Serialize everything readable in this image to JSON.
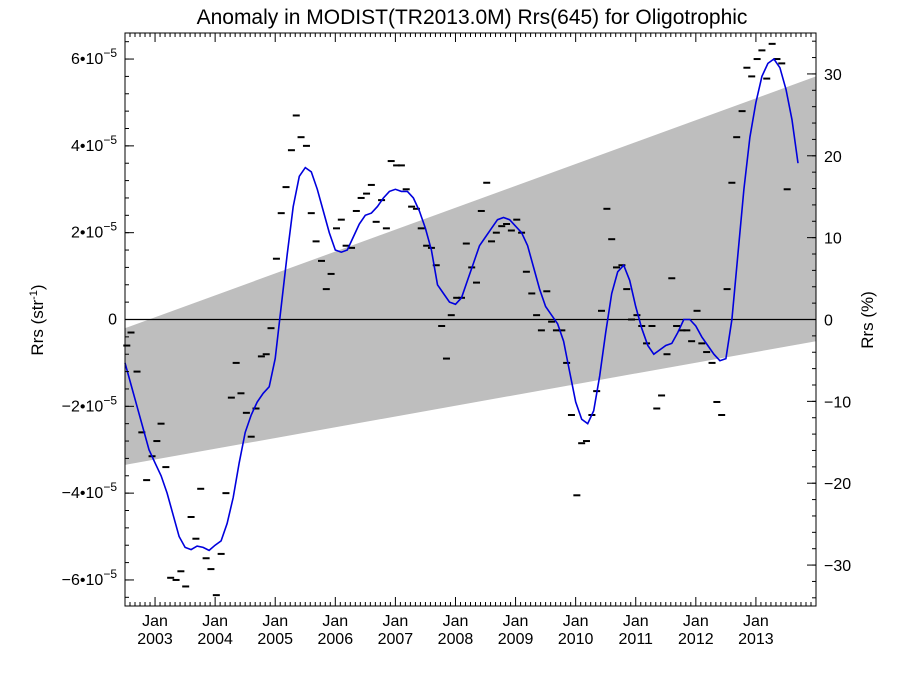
{
  "chart_data": {
    "type": "line",
    "title": "Anomaly in MODIST(TR2013.0M) Rrs(645) for Oligotrophic",
    "ylabel_left": "Rrs (str",
    "ylabel_left_sup": "-1",
    "ylabel_left_close": ")",
    "ylabel_right": "Rrs (%)",
    "x_range": [
      2002.5,
      2014.0
    ],
    "ylim": [
      -6.6e-05,
      6.6e-05
    ],
    "ylim_right_percent": [
      -35,
      35
    ],
    "zero_line": 0,
    "left_ticks": [
      {
        "value": 6e-05,
        "mantissa": "6•10",
        "exp": "−5"
      },
      {
        "value": 4e-05,
        "mantissa": "4•10",
        "exp": "−5"
      },
      {
        "value": 2e-05,
        "mantissa": "2•10",
        "exp": "−5"
      },
      {
        "value": 0,
        "mantissa": "0",
        "exp": ""
      },
      {
        "value": -2e-05,
        "mantissa": "−2•10",
        "exp": "−5"
      },
      {
        "value": -4e-05,
        "mantissa": "−4•10",
        "exp": "−5"
      },
      {
        "value": -6e-05,
        "mantissa": "−6•10",
        "exp": "−5"
      }
    ],
    "right_ticks": [
      {
        "value": 30,
        "label": "30"
      },
      {
        "value": 20,
        "label": "20"
      },
      {
        "value": 10,
        "label": "10"
      },
      {
        "value": 0,
        "label": "0"
      },
      {
        "value": -10,
        "label": "−10"
      },
      {
        "value": -20,
        "label": "−20"
      },
      {
        "value": -30,
        "label": "−30"
      }
    ],
    "x_ticks": [
      {
        "x": 2003,
        "month": "Jan",
        "year": "2003"
      },
      {
        "x": 2004,
        "month": "Jan",
        "year": "2004"
      },
      {
        "x": 2005,
        "month": "Jan",
        "year": "2005"
      },
      {
        "x": 2006,
        "month": "Jan",
        "year": "2006"
      },
      {
        "x": 2007,
        "month": "Jan",
        "year": "2007"
      },
      {
        "x": 2008,
        "month": "Jan",
        "year": "2008"
      },
      {
        "x": 2009,
        "month": "Jan",
        "year": "2009"
      },
      {
        "x": 2010,
        "month": "Jan",
        "year": "2010"
      },
      {
        "x": 2011,
        "month": "Jan",
        "year": "2011"
      },
      {
        "x": 2012,
        "month": "Jan",
        "year": "2012"
      },
      {
        "x": 2013,
        "month": "Jan",
        "year": "2013"
      }
    ],
    "band": {
      "color": "#bebebe",
      "upper": [
        [
          2002.5,
          -2e-06
        ],
        [
          2014.0,
          5.6e-05
        ]
      ],
      "lower": [
        [
          2002.5,
          -3.35e-05
        ],
        [
          2014.0,
          -5e-06
        ]
      ]
    },
    "smoothed": {
      "color": "#0000dd",
      "points": [
        [
          2002.5,
          -1e-05
        ],
        [
          2002.6,
          -1.5e-05
        ],
        [
          2002.7,
          -2e-05
        ],
        [
          2002.8,
          -2.5e-05
        ],
        [
          2002.9,
          -3e-05
        ],
        [
          2003.0,
          -3.3e-05
        ],
        [
          2003.1,
          -3.6e-05
        ],
        [
          2003.2,
          -4e-05
        ],
        [
          2003.3,
          -4.5e-05
        ],
        [
          2003.4,
          -5e-05
        ],
        [
          2003.5,
          -5.25e-05
        ],
        [
          2003.6,
          -5.3e-05
        ],
        [
          2003.7,
          -5.22e-05
        ],
        [
          2003.8,
          -5.25e-05
        ],
        [
          2003.9,
          -5.32e-05
        ],
        [
          2004.0,
          -5.2e-05
        ],
        [
          2004.1,
          -5.1e-05
        ],
        [
          2004.2,
          -4.7e-05
        ],
        [
          2004.3,
          -4.1e-05
        ],
        [
          2004.4,
          -3.3e-05
        ],
        [
          2004.5,
          -2.6e-05
        ],
        [
          2004.6,
          -2.2e-05
        ],
        [
          2004.7,
          -1.9e-05
        ],
        [
          2004.8,
          -1.7e-05
        ],
        [
          2004.9,
          -1.55e-05
        ],
        [
          2005.0,
          -9e-06
        ],
        [
          2005.1,
          3e-06
        ],
        [
          2005.2,
          1.5e-05
        ],
        [
          2005.3,
          2.6e-05
        ],
        [
          2005.4,
          3.3e-05
        ],
        [
          2005.5,
          3.5e-05
        ],
        [
          2005.6,
          3.4e-05
        ],
        [
          2005.7,
          3e-05
        ],
        [
          2005.8,
          2.5e-05
        ],
        [
          2005.9,
          2e-05
        ],
        [
          2006.0,
          1.6e-05
        ],
        [
          2006.1,
          1.55e-05
        ],
        [
          2006.2,
          1.6e-05
        ],
        [
          2006.3,
          1.9e-05
        ],
        [
          2006.4,
          2.2e-05
        ],
        [
          2006.5,
          2.4e-05
        ],
        [
          2006.6,
          2.45e-05
        ],
        [
          2006.7,
          2.6e-05
        ],
        [
          2006.8,
          2.8e-05
        ],
        [
          2006.9,
          2.95e-05
        ],
        [
          2007.0,
          3e-05
        ],
        [
          2007.1,
          2.95e-05
        ],
        [
          2007.2,
          2.95e-05
        ],
        [
          2007.3,
          2.8e-05
        ],
        [
          2007.4,
          2.5e-05
        ],
        [
          2007.5,
          2.1e-05
        ],
        [
          2007.6,
          1.6e-05
        ],
        [
          2007.7,
          8e-06
        ],
        [
          2007.8,
          6e-06
        ],
        [
          2007.9,
          4e-06
        ],
        [
          2008.0,
          3.5e-06
        ],
        [
          2008.1,
          5e-06
        ],
        [
          2008.2,
          9e-06
        ],
        [
          2008.3,
          1.3e-05
        ],
        [
          2008.4,
          1.7e-05
        ],
        [
          2008.5,
          1.9e-05
        ],
        [
          2008.6,
          2.1e-05
        ],
        [
          2008.7,
          2.3e-05
        ],
        [
          2008.8,
          2.35e-05
        ],
        [
          2008.9,
          2.3e-05
        ],
        [
          2009.0,
          2.15e-05
        ],
        [
          2009.1,
          2e-05
        ],
        [
          2009.2,
          1.7e-05
        ],
        [
          2009.3,
          1.2e-05
        ],
        [
          2009.4,
          7e-06
        ],
        [
          2009.5,
          3e-06
        ],
        [
          2009.6,
          1e-06
        ],
        [
          2009.7,
          -1e-06
        ],
        [
          2009.8,
          -5e-06
        ],
        [
          2009.9,
          -1.2e-05
        ],
        [
          2010.0,
          -1.9e-05
        ],
        [
          2010.1,
          -2.3e-05
        ],
        [
          2010.2,
          -2.4e-05
        ],
        [
          2010.3,
          -2.1e-05
        ],
        [
          2010.4,
          -1.3e-05
        ],
        [
          2010.5,
          -3e-06
        ],
        [
          2010.6,
          6e-06
        ],
        [
          2010.7,
          1.1e-05
        ],
        [
          2010.8,
          1.25e-05
        ],
        [
          2010.9,
          9e-06
        ],
        [
          2011.0,
          3e-06
        ],
        [
          2011.1,
          -2e-06
        ],
        [
          2011.2,
          -6e-06
        ],
        [
          2011.3,
          -8e-06
        ],
        [
          2011.4,
          -7e-06
        ],
        [
          2011.5,
          -6e-06
        ],
        [
          2011.6,
          -5.5e-06
        ],
        [
          2011.7,
          -3e-06
        ],
        [
          2011.8,
          0.0
        ],
        [
          2011.9,
          0.0
        ],
        [
          2012.0,
          -1.5e-06
        ],
        [
          2012.1,
          -4e-06
        ],
        [
          2012.2,
          -6e-06
        ],
        [
          2012.3,
          -8e-06
        ],
        [
          2012.4,
          -9.5e-06
        ],
        [
          2012.5,
          -9e-06
        ],
        [
          2012.6,
          0.0
        ],
        [
          2012.7,
          1.5e-05
        ],
        [
          2012.8,
          3e-05
        ],
        [
          2012.9,
          4.2e-05
        ],
        [
          2013.0,
          5e-05
        ],
        [
          2013.1,
          5.6e-05
        ],
        [
          2013.2,
          5.9e-05
        ],
        [
          2013.3,
          6e-05
        ],
        [
          2013.4,
          5.8e-05
        ],
        [
          2013.5,
          5.3e-05
        ],
        [
          2013.6,
          4.6e-05
        ],
        [
          2013.7,
          3.6e-05
        ]
      ]
    },
    "monthly_points": [
      [
        2002.53,
        -6e-06
      ],
      [
        2002.6,
        -3e-06
      ],
      [
        2002.7,
        -1.2e-05
      ],
      [
        2002.78,
        -2.6e-05
      ],
      [
        2002.86,
        -3.7e-05
      ],
      [
        2002.95,
        -3.15e-05
      ],
      [
        2003.03,
        -2.8e-05
      ],
      [
        2003.1,
        -2.4e-05
      ],
      [
        2003.18,
        -3.4e-05
      ],
      [
        2003.26,
        -5.95e-05
      ],
      [
        2003.35,
        -6e-05
      ],
      [
        2003.43,
        -5.8e-05
      ],
      [
        2003.51,
        -6.15e-05
      ],
      [
        2003.6,
        -4.55e-05
      ],
      [
        2003.68,
        -5.05e-05
      ],
      [
        2003.76,
        -3.9e-05
      ],
      [
        2003.85,
        -5.5e-05
      ],
      [
        2003.93,
        -5.75e-05
      ],
      [
        2004.02,
        -6.35e-05
      ],
      [
        2004.1,
        -5.4e-05
      ],
      [
        2004.18,
        -4e-05
      ],
      [
        2004.27,
        -1.8e-05
      ],
      [
        2004.35,
        -1e-05
      ],
      [
        2004.43,
        -1.7e-05
      ],
      [
        2004.52,
        -2.15e-05
      ],
      [
        2004.6,
        -2.7e-05
      ],
      [
        2004.68,
        -2.05e-05
      ],
      [
        2004.77,
        -8.5e-06
      ],
      [
        2004.85,
        -8e-06
      ],
      [
        2004.93,
        -2e-06
      ],
      [
        2005.02,
        1.4e-05
      ],
      [
        2005.1,
        2.45e-05
      ],
      [
        2005.18,
        3.05e-05
      ],
      [
        2005.27,
        3.9e-05
      ],
      [
        2005.35,
        4.7e-05
      ],
      [
        2005.43,
        4.2e-05
      ],
      [
        2005.52,
        4e-05
      ],
      [
        2005.6,
        2.45e-05
      ],
      [
        2005.68,
        1.8e-05
      ],
      [
        2005.77,
        1.35e-05
      ],
      [
        2005.85,
        7e-06
      ],
      [
        2005.93,
        1.05e-05
      ],
      [
        2006.02,
        2.1e-05
      ],
      [
        2006.1,
        2.3e-05
      ],
      [
        2006.18,
        1.7e-05
      ],
      [
        2006.27,
        1.65e-05
      ],
      [
        2006.35,
        2.5e-05
      ],
      [
        2006.43,
        2.8e-05
      ],
      [
        2006.52,
        2.9e-05
      ],
      [
        2006.6,
        3.1e-05
      ],
      [
        2006.68,
        2.25e-05
      ],
      [
        2006.77,
        2.75e-05
      ],
      [
        2006.85,
        2.1e-05
      ],
      [
        2006.93,
        3.65e-05
      ],
      [
        2007.02,
        3.55e-05
      ],
      [
        2007.1,
        3.55e-05
      ],
      [
        2007.18,
        3e-05
      ],
      [
        2007.27,
        2.6e-05
      ],
      [
        2007.35,
        2.55e-05
      ],
      [
        2007.43,
        2.1e-05
      ],
      [
        2007.52,
        1.7e-05
      ],
      [
        2007.6,
        1.65e-05
      ],
      [
        2007.68,
        1.25e-05
      ],
      [
        2007.77,
        -1.5e-06
      ],
      [
        2007.85,
        -9e-06
      ],
      [
        2007.93,
        1e-06
      ],
      [
        2008.02,
        5e-06
      ],
      [
        2008.1,
        5e-06
      ],
      [
        2008.18,
        1.75e-05
      ],
      [
        2008.27,
        1.2e-05
      ],
      [
        2008.35,
        8.5e-06
      ],
      [
        2008.43,
        2.5e-05
      ],
      [
        2008.52,
        3.15e-05
      ],
      [
        2008.6,
        1.8e-05
      ],
      [
        2008.68,
        2e-05
      ],
      [
        2008.77,
        2.15e-05
      ],
      [
        2008.85,
        2.2e-05
      ],
      [
        2008.93,
        2.05e-05
      ],
      [
        2009.02,
        2.3e-05
      ],
      [
        2009.1,
        2e-05
      ],
      [
        2009.18,
        1.1e-05
      ],
      [
        2009.27,
        6e-06
      ],
      [
        2009.35,
        1e-06
      ],
      [
        2009.43,
        -2.5e-06
      ],
      [
        2009.52,
        6.5e-06
      ],
      [
        2009.6,
        -5e-07
      ],
      [
        2009.68,
        -2.5e-06
      ],
      [
        2009.77,
        -2.5e-06
      ],
      [
        2009.85,
        -1e-05
      ],
      [
        2009.93,
        -2.2e-05
      ],
      [
        2010.02,
        -4.05e-05
      ],
      [
        2010.1,
        -2.85e-05
      ],
      [
        2010.18,
        -2.8e-05
      ],
      [
        2010.27,
        -2.2e-05
      ],
      [
        2010.35,
        -1.65e-05
      ],
      [
        2010.43,
        2e-06
      ],
      [
        2010.52,
        2.55e-05
      ],
      [
        2010.6,
        1.85e-05
      ],
      [
        2010.68,
        1.2e-05
      ],
      [
        2010.77,
        1.25e-05
      ],
      [
        2010.85,
        7e-06
      ],
      [
        2010.93,
        0.0
      ],
      [
        2011.02,
        1e-06
      ],
      [
        2011.1,
        -1.5e-06
      ],
      [
        2011.18,
        -5.5e-06
      ],
      [
        2011.27,
        -1.5e-06
      ],
      [
        2011.35,
        -2.05e-05
      ],
      [
        2011.43,
        -1.75e-05
      ],
      [
        2011.52,
        -8e-06
      ],
      [
        2011.6,
        9.5e-06
      ],
      [
        2011.68,
        -1.5e-06
      ],
      [
        2011.77,
        -2.5e-06
      ],
      [
        2011.85,
        -2.5e-06
      ],
      [
        2011.93,
        -5e-06
      ],
      [
        2012.02,
        2e-06
      ],
      [
        2012.1,
        -5.5e-06
      ],
      [
        2012.18,
        -7.5e-06
      ],
      [
        2012.27,
        -1e-05
      ],
      [
        2012.35,
        -1.9e-05
      ],
      [
        2012.43,
        -2.2e-05
      ],
      [
        2012.52,
        7e-06
      ],
      [
        2012.6,
        3.15e-05
      ],
      [
        2012.68,
        4.2e-05
      ],
      [
        2012.77,
        4.8e-05
      ],
      [
        2012.85,
        5.8e-05
      ],
      [
        2012.93,
        5.6e-05
      ],
      [
        2013.02,
        6e-05
      ],
      [
        2013.1,
        6.2e-05
      ],
      [
        2013.18,
        5.55e-05
      ],
      [
        2013.27,
        6.35e-05
      ],
      [
        2013.35,
        6e-05
      ],
      [
        2013.43,
        5.9e-05
      ],
      [
        2013.52,
        3e-05
      ]
    ]
  }
}
